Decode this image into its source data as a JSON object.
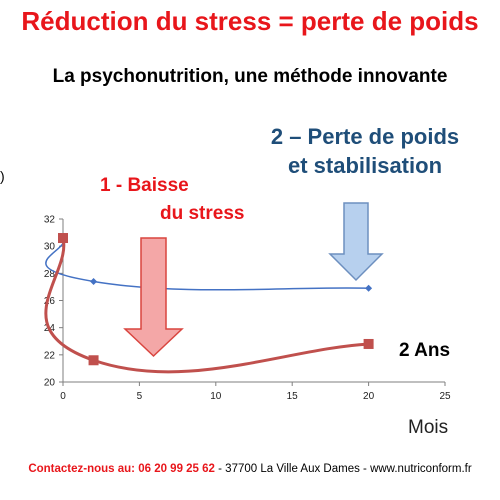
{
  "title": "Réduction du stress = perte de poids",
  "subtitle": "La psychonutrition, une méthode innovante",
  "annotations": {
    "weight_loss_line1": "2 – Perte de poids",
    "weight_loss_line2": "et stabilisation",
    "stress_line1": "1 -  Baisse",
    "stress_line2": "du stress",
    "duration": "2 Ans",
    "x_unit": "Mois",
    "edge_glyph": ")"
  },
  "footer": {
    "contact": "Contactez-nous au: 06 20 99 25 62",
    "address": " - 37700 La Ville Aux Dames - www.nutriconform.fr"
  },
  "colors": {
    "title": "#e8161b",
    "annotation_blue": "#1f4e79",
    "series_blue": "#4472c4",
    "series_red": "#c0504d",
    "arrow_red_fill": "#f4a7a7",
    "arrow_blue_fill": "#b7d0ee"
  },
  "icons": [
    "down-arrow-red-icon",
    "down-arrow-blue-icon"
  ],
  "chart_data": {
    "type": "line",
    "xlim": [
      0,
      25
    ],
    "ylim": [
      20,
      32
    ],
    "xticks": [
      "0",
      "5",
      "10",
      "15",
      "20",
      "25"
    ],
    "yticks": [
      "20",
      "22",
      "24",
      "26",
      "28",
      "30",
      "32"
    ],
    "grid": false,
    "smooth": true,
    "series": [
      {
        "color": "#4472c4",
        "marker": "diamond",
        "x": [
          0,
          2,
          20
        ],
        "y": [
          30.6,
          27.4,
          26.9
        ]
      },
      {
        "color": "#c0504d",
        "marker": "square",
        "x": [
          0,
          2,
          20
        ],
        "y": [
          30.6,
          21.6,
          22.8
        ]
      }
    ]
  }
}
